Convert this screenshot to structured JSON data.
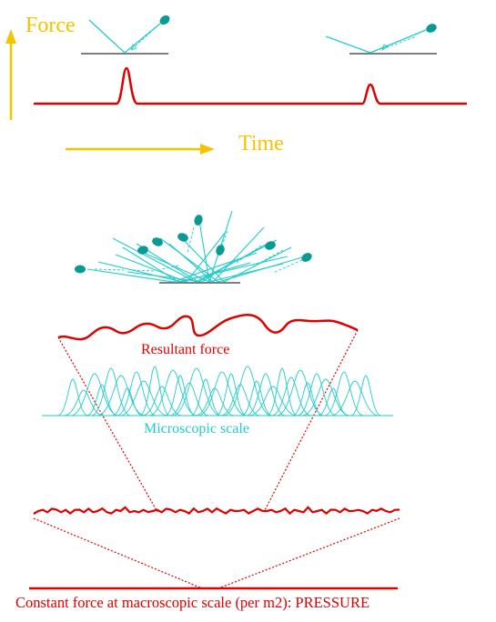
{
  "labels": {
    "force": "Force",
    "time": "Time",
    "resultant": "Resultant force",
    "microscopic": "Microscopic scale",
    "pressure": "Constant force at macroscopic scale (per m2): PRESSURE"
  },
  "colors": {
    "yellow": "#f5c400",
    "red": "#e00000",
    "cyan": "#22cccc",
    "teal": "#0a9a96",
    "gray": "#555555"
  }
}
